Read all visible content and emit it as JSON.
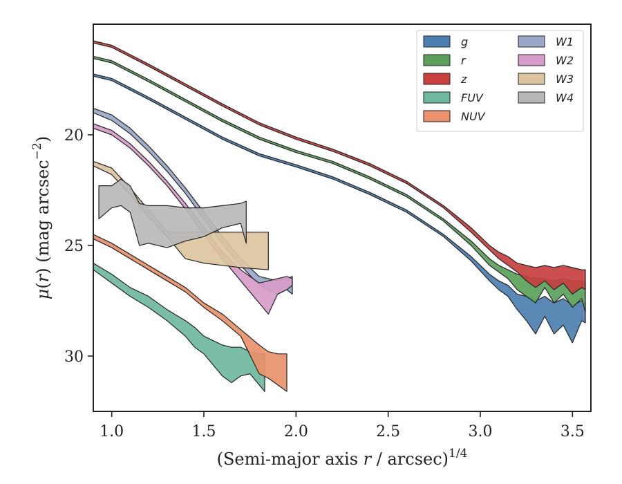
{
  "chart_data": {
    "type": "area",
    "xlabel": "(Semi-major axis r / arcsec)^1/4",
    "xlabel_parts": {
      "prefix": "(Semi-major axis ",
      "var": "r",
      "suffix": " / arcsec)",
      "sup": "1/4"
    },
    "ylabel": "μ(r) (mag arcsec^-2)",
    "ylabel_parts": {
      "mu": "μ",
      "open": "(",
      "var": "r",
      "close": ") (mag arcsec",
      "sup": "−2",
      "end": ")"
    },
    "xlim": [
      0.9,
      3.6
    ],
    "ylim": [
      32.5,
      15.0
    ],
    "y_inverted": true,
    "xticks": [
      1.0,
      1.5,
      2.0,
      2.5,
      3.0,
      3.5
    ],
    "xtick_labels": [
      "1.0",
      "1.5",
      "2.0",
      "2.5",
      "3.0",
      "3.5"
    ],
    "yticks": [
      20,
      25,
      30
    ],
    "ytick_labels": [
      "20",
      "25",
      "30"
    ],
    "legend": {
      "placement": "top-right",
      "columns": 2
    },
    "series": [
      {
        "name": "g",
        "color": "#4c7fb0",
        "x": [
          0.9,
          1.0,
          1.2,
          1.4,
          1.6,
          1.8,
          2.0,
          2.2,
          2.4,
          2.6,
          2.8,
          2.95,
          3.05,
          3.1,
          3.15,
          3.2,
          3.25,
          3.3,
          3.35,
          3.4,
          3.45,
          3.5,
          3.55,
          3.57
        ],
        "y1": [
          17.25,
          17.45,
          18.3,
          19.2,
          20.1,
          20.85,
          21.35,
          21.9,
          22.6,
          23.4,
          24.5,
          25.5,
          26.3,
          26.6,
          26.8,
          27.2,
          27.3,
          27.5,
          27.3,
          27.6,
          27.4,
          27.7,
          27.5,
          27.6
        ],
        "y2": [
          17.35,
          17.55,
          18.4,
          19.3,
          20.2,
          20.95,
          21.45,
          22.0,
          22.7,
          23.5,
          24.6,
          25.7,
          26.6,
          27.0,
          27.3,
          27.9,
          28.4,
          29.0,
          28.2,
          29.0,
          28.6,
          29.4,
          28.4,
          28.5
        ]
      },
      {
        "name": "r",
        "color": "#5aa05a",
        "x": [
          0.9,
          1.0,
          1.2,
          1.4,
          1.6,
          1.8,
          2.0,
          2.2,
          2.4,
          2.6,
          2.8,
          2.95,
          3.05,
          3.1,
          3.15,
          3.2,
          3.25,
          3.3,
          3.35,
          3.4,
          3.45,
          3.5,
          3.55,
          3.57
        ],
        "y1": [
          16.45,
          16.65,
          17.5,
          18.4,
          19.3,
          20.1,
          20.7,
          21.2,
          21.9,
          22.7,
          23.8,
          24.8,
          25.6,
          25.9,
          26.1,
          26.3,
          26.4,
          26.5,
          26.5,
          26.6,
          26.5,
          26.6,
          26.6,
          26.7
        ],
        "y2": [
          16.55,
          16.75,
          17.6,
          18.5,
          19.4,
          20.2,
          20.8,
          21.3,
          22.0,
          22.8,
          23.9,
          25.0,
          25.9,
          26.2,
          26.5,
          27.0,
          27.3,
          27.6,
          26.9,
          27.6,
          27.2,
          27.8,
          27.4,
          28.0
        ]
      },
      {
        "name": "z",
        "color": "#c84040",
        "x": [
          0.9,
          1.0,
          1.2,
          1.4,
          1.6,
          1.8,
          2.0,
          2.2,
          2.4,
          2.6,
          2.8,
          2.95,
          3.05,
          3.1,
          3.15,
          3.2,
          3.25,
          3.3,
          3.35,
          3.4,
          3.45,
          3.5,
          3.55,
          3.57
        ],
        "y1": [
          15.75,
          15.95,
          16.8,
          17.7,
          18.6,
          19.45,
          20.1,
          20.65,
          21.3,
          22.1,
          23.2,
          24.2,
          25.0,
          25.3,
          25.5,
          25.8,
          25.9,
          26.0,
          25.9,
          26.0,
          25.9,
          26.0,
          26.1,
          26.1
        ],
        "y2": [
          15.85,
          16.05,
          16.9,
          17.8,
          18.7,
          19.55,
          20.2,
          20.75,
          21.4,
          22.2,
          23.3,
          24.4,
          25.2,
          25.6,
          25.9,
          26.2,
          26.6,
          26.9,
          26.6,
          27.0,
          26.7,
          27.2,
          26.9,
          27.0
        ]
      },
      {
        "name": "FUV",
        "color": "#6fb89e",
        "x": [
          0.9,
          1.0,
          1.1,
          1.2,
          1.3,
          1.4,
          1.45,
          1.5,
          1.55,
          1.6,
          1.65,
          1.7,
          1.75,
          1.8,
          1.83
        ],
        "y1": [
          25.8,
          26.3,
          26.9,
          27.3,
          27.9,
          28.4,
          28.7,
          29.1,
          29.3,
          29.5,
          29.6,
          29.6,
          29.8,
          29.9,
          29.9
        ],
        "y2": [
          26.1,
          26.7,
          27.3,
          27.8,
          28.4,
          29.1,
          29.6,
          29.9,
          30.4,
          30.9,
          31.2,
          30.9,
          30.8,
          31.3,
          31.6
        ]
      },
      {
        "name": "NUV",
        "color": "#e8916a",
        "x": [
          0.9,
          1.0,
          1.1,
          1.2,
          1.3,
          1.4,
          1.5,
          1.6,
          1.7,
          1.8,
          1.85,
          1.9,
          1.95
        ],
        "y1": [
          24.5,
          24.9,
          25.4,
          25.9,
          26.4,
          26.9,
          27.6,
          28.1,
          28.8,
          29.5,
          29.8,
          29.9,
          29.9
        ],
        "y2": [
          24.7,
          25.1,
          25.6,
          26.1,
          26.6,
          27.1,
          27.8,
          28.4,
          29.1,
          30.8,
          31.0,
          31.3,
          31.6
        ]
      },
      {
        "name": "W1",
        "color": "#9aa8c8",
        "x": [
          0.9,
          1.0,
          1.1,
          1.2,
          1.3,
          1.4,
          1.5,
          1.6,
          1.7,
          1.8,
          1.9,
          1.95,
          1.98
        ],
        "y1": [
          18.8,
          19.1,
          19.7,
          20.5,
          21.4,
          22.4,
          23.5,
          24.6,
          25.6,
          26.4,
          26.6,
          26.5,
          26.4
        ],
        "y2": [
          19.0,
          19.35,
          19.95,
          20.75,
          21.65,
          22.65,
          23.8,
          24.9,
          25.9,
          26.8,
          27.2,
          27.0,
          27.2
        ]
      },
      {
        "name": "W2",
        "color": "#d79cca",
        "x": [
          0.9,
          1.0,
          1.1,
          1.2,
          1.3,
          1.4,
          1.5,
          1.6,
          1.7,
          1.8,
          1.85,
          1.9,
          1.95,
          1.98
        ],
        "y1": [
          19.5,
          19.8,
          20.4,
          21.2,
          22.1,
          23.1,
          24.2,
          25.3,
          26.1,
          26.7,
          26.6,
          26.5,
          26.4,
          26.5
        ],
        "y2": [
          19.7,
          20.0,
          20.6,
          21.4,
          22.3,
          23.35,
          24.5,
          25.6,
          26.6,
          27.6,
          28.1,
          27.2,
          27.0,
          26.8
        ]
      },
      {
        "name": "W3",
        "color": "#dcc4a0",
        "x": [
          0.9,
          1.0,
          1.1,
          1.2,
          1.3,
          1.4,
          1.5,
          1.6,
          1.7,
          1.85
        ],
        "y1": [
          21.2,
          21.5,
          22.4,
          23.4,
          24.4,
          24.4,
          24.4,
          24.4,
          24.4,
          24.4
        ],
        "y2": [
          21.4,
          21.8,
          22.7,
          23.7,
          24.6,
          25.6,
          25.8,
          25.9,
          26.0,
          26.1
        ]
      },
      {
        "name": "W4",
        "color": "#b8b8b8",
        "x": [
          0.93,
          1.0,
          1.05,
          1.1,
          1.15,
          1.2,
          1.3,
          1.4,
          1.5,
          1.6,
          1.7,
          1.73
        ],
        "y1": [
          22.3,
          22.3,
          22.0,
          22.3,
          23.1,
          23.2,
          23.2,
          23.3,
          23.3,
          23.2,
          23.1,
          23.0
        ],
        "y2": [
          23.8,
          23.3,
          23.2,
          23.5,
          25.0,
          24.9,
          25.1,
          24.8,
          24.6,
          24.2,
          24.0,
          24.9
        ]
      }
    ]
  }
}
